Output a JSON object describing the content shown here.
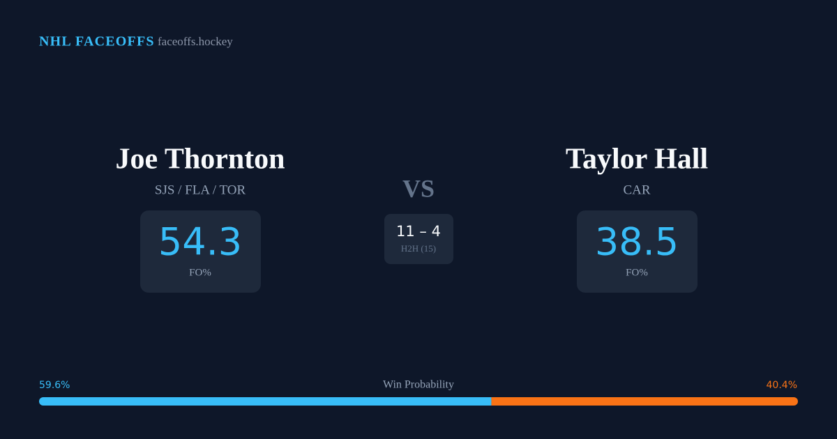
{
  "header": {
    "brand": "NHL FACEOFFS",
    "site": "faceoffs.hockey"
  },
  "players": [
    {
      "name": "Joe Thornton",
      "teams": "SJS / FLA / TOR",
      "score": 54.3,
      "score_label": "FO%"
    },
    {
      "name": "Taylor Hall",
      "teams": "CAR",
      "score": 38.5,
      "score_label": "FO%"
    }
  ],
  "versus": {
    "label": "VS",
    "record": "11 – 4",
    "record_label": "H2H (15)"
  },
  "win_probability": {
    "title": "Win Probability",
    "left": {
      "value": 59.6,
      "label": "59.6%",
      "color": "#38bdf8"
    },
    "right": {
      "value": 40.4,
      "label": "40.4%",
      "color": "#f97316"
    }
  }
}
